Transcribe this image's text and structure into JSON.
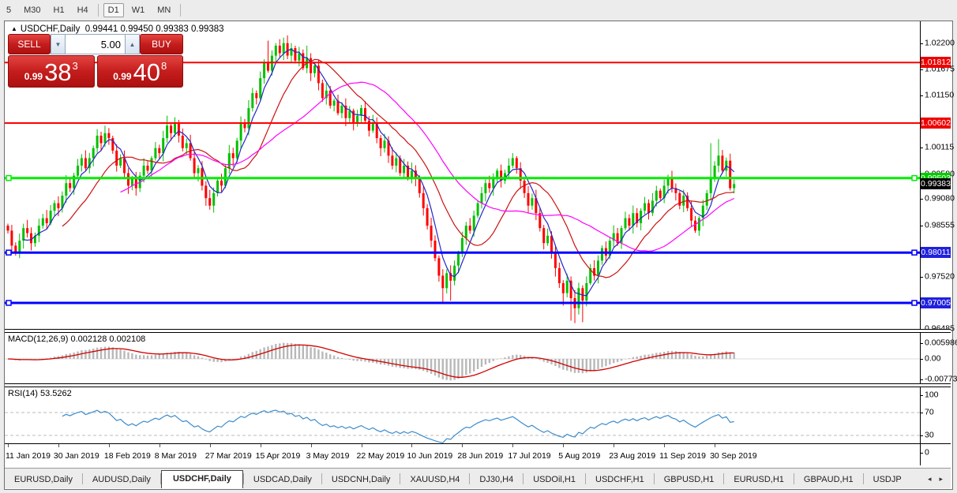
{
  "toolbar": {
    "timeframes": [
      "5",
      "M30",
      "H1",
      "H4",
      "D1",
      "W1",
      "MN"
    ],
    "active": "D1"
  },
  "chart_window": {
    "header": {
      "marker": "▲",
      "symbol": "USDCHF,Daily",
      "ohlc": "0.99441 0.99450 0.99383 0.99383"
    }
  },
  "trade_panel": {
    "sell_label": "SELL",
    "buy_label": "BUY",
    "volume": "5.00",
    "spin_down": "▼",
    "spin_up": "▲",
    "sell_price_prefix": "0.99",
    "sell_price_big": "38",
    "sell_price_sup": "3",
    "buy_price_prefix": "0.99",
    "buy_price_big": "40",
    "buy_price_sup": "8"
  },
  "chart_data": {
    "type": "candlestick",
    "symbol": "USDCHF",
    "timeframe": "Daily",
    "title": "USDCHF,Daily 0.99441 0.99450 0.99383 0.99383",
    "x_tick_labels": [
      "11 Jan 2019",
      "30 Jan 2019",
      "18 Feb 2019",
      "8 Mar 2019",
      "27 Mar 2019",
      "15 Apr 2019",
      "3 May 2019",
      "22 May 2019",
      "10 Jun 2019",
      "28 Jun 2019",
      "17 Jul 2019",
      "5 Aug 2019",
      "23 Aug 2019",
      "11 Sep 2019",
      "30 Sep 2019"
    ],
    "candles_per_tick": 13,
    "y_axis_ticks": [
      1.022,
      1.01675,
      1.0115,
      1.00115,
      0.9958,
      0.9908,
      0.98555,
      0.9752,
      0.96485
    ],
    "y_axis_badges": [
      {
        "value": "1.01812",
        "num": 1.01812,
        "color": "#ee0000"
      },
      {
        "value": "1.00602",
        "num": 1.00602,
        "color": "#ee0000"
      },
      {
        "value": "0.99503",
        "num": 0.99503,
        "color": "#00cc00"
      },
      {
        "value": "0.99383",
        "num": 0.99383,
        "color": "#000000"
      },
      {
        "value": "0.98011",
        "num": 0.98011,
        "color": "#2020dd"
      },
      {
        "value": "0.97005",
        "num": 0.97005,
        "color": "#2020dd"
      }
    ],
    "levels": {
      "resistance": [
        1.01812,
        1.00602
      ],
      "resistance_color": "#ff0000",
      "current_line": 0.99503,
      "current_line_color": "#00ee00",
      "support": [
        0.98011,
        0.97005
      ],
      "support_color": "#0000ff"
    },
    "current_price": 0.99383,
    "price_range": {
      "top": 1.02558,
      "bottom": 0.96487
    },
    "up_color": "#00c000",
    "down_color": "#ff0000",
    "moving_averages": [
      {
        "period": 5,
        "color": "#2525c8"
      },
      {
        "period": 15,
        "color": "#cc1111"
      },
      {
        "period": 30,
        "color": "#ff00ff"
      }
    ],
    "closes": [
      0.9845,
      0.9815,
      0.98,
      0.9825,
      0.985,
      0.984,
      0.982,
      0.9835,
      0.9855,
      0.987,
      0.986,
      0.9885,
      0.99,
      0.989,
      0.9915,
      0.994,
      0.993,
      0.9955,
      0.9975,
      0.999,
      0.997,
      0.999,
      1.001,
      1.0035,
      1.002,
      1.004,
      1.003,
      1.0005,
      0.9975,
      0.999,
      0.996,
      0.9935,
      0.995,
      0.993,
      0.9955,
      0.9975,
      0.9965,
      0.999,
      1.001,
      1.0,
      1.003,
      1.0055,
      1.004,
      1.006,
      1.0035,
      1.001,
      1.002,
      0.999,
      0.996,
      0.997,
      0.9935,
      0.991,
      0.9895,
      0.992,
      0.9945,
      0.9935,
      0.997,
      1.0,
      0.999,
      1.0025,
      1.006,
      1.005,
      1.009,
      1.012,
      1.011,
      1.015,
      1.018,
      1.0165,
      1.0195,
      1.0215,
      1.02,
      1.022,
      1.0195,
      1.021,
      1.0185,
      1.02,
      1.017,
      1.019,
      1.016,
      1.0175,
      1.014,
      1.011,
      1.0125,
      1.0095,
      1.0105,
      1.008,
      1.0095,
      1.007,
      1.0085,
      1.006,
      1.0075,
      1.009,
      1.0065,
      1.0045,
      1.006,
      1.003,
      1.001,
      1.0025,
      0.9995,
      0.9975,
      0.999,
      0.996,
      0.9975,
      0.995,
      0.9965,
      0.995,
      0.992,
      0.989,
      0.9855,
      0.9825,
      0.979,
      0.9755,
      0.973,
      0.976,
      0.9745,
      0.9775,
      0.98,
      0.983,
      0.9855,
      0.9845,
      0.9875,
      0.99,
      0.992,
      0.994,
      0.993,
      0.995,
      0.9965,
      0.9945,
      0.996,
      0.9975,
      0.999,
      0.997,
      0.9945,
      0.992,
      0.9895,
      0.991,
      0.988,
      0.985,
      0.982,
      0.9835,
      0.98,
      0.977,
      0.974,
      0.972,
      0.9745,
      0.971,
      0.969,
      0.973,
      0.9705,
      0.974,
      0.977,
      0.9755,
      0.9785,
      0.981,
      0.9795,
      0.9825,
      0.984,
      0.982,
      0.985,
      0.987,
      0.9855,
      0.988,
      0.986,
      0.9885,
      0.99,
      0.988,
      0.9905,
      0.9925,
      0.991,
      0.9935,
      0.995,
      0.993,
      0.992,
      0.9895,
      0.9915,
      0.989,
      0.9865,
      0.9845,
      0.987,
      0.9895,
      0.992,
      0.995,
      0.9975,
      0.9995,
      0.9965,
      0.9985,
      0.993,
      0.99383
    ],
    "wick_overrides": [
      [
        2,
        null,
        0.9795
      ],
      [
        25,
        1.0055,
        null
      ],
      [
        41,
        1.0075,
        null
      ],
      [
        67,
        1.0225,
        null
      ],
      [
        71,
        1.0231,
        null
      ],
      [
        77,
        1.0215,
        null
      ],
      [
        112,
        null,
        0.97
      ],
      [
        114,
        null,
        0.9705
      ],
      [
        130,
        1.0,
        null
      ],
      [
        143,
        null,
        0.9695
      ],
      [
        145,
        null,
        0.9665
      ],
      [
        146,
        null,
        0.966
      ],
      [
        148,
        null,
        0.9662
      ],
      [
        181,
        1.002,
        null
      ],
      [
        183,
        1.0028,
        null
      ]
    ],
    "indicators": {
      "macd": {
        "label": "MACD(12,26,9)",
        "values_text": "0.002128 0.002108",
        "params": [
          12,
          26,
          9
        ],
        "axis": [
          0.005986,
          0.0,
          -0.007737
        ],
        "axis_text": [
          "0.005986",
          "0.00",
          "-0.007737"
        ],
        "histogram_color": "#b8b8b8",
        "signal_color": "#d00000"
      },
      "rsi": {
        "label": "RSI(14)",
        "value_text": "53.5262",
        "period": 14,
        "axis": [
          100,
          70,
          30,
          0
        ],
        "levels": [
          70,
          30
        ],
        "line_color": "#3c8ccc",
        "level_color": "#bbbbbb"
      }
    }
  },
  "bottom_tabs": {
    "tabs": [
      "EURUSD,Daily",
      "AUDUSD,Daily",
      "USDCHF,Daily",
      "USDCAD,Daily",
      "USDCNH,Daily",
      "XAUUSD,H4",
      "DJ30,H4",
      "USDOil,H1",
      "USDCHF,H1",
      "GBPUSD,H1",
      "EURUSD,H1",
      "GBPAUD,H1",
      "USDJP"
    ],
    "active": "USDCHF,Daily",
    "scroll_left": "◂",
    "scroll_right": "▸"
  }
}
